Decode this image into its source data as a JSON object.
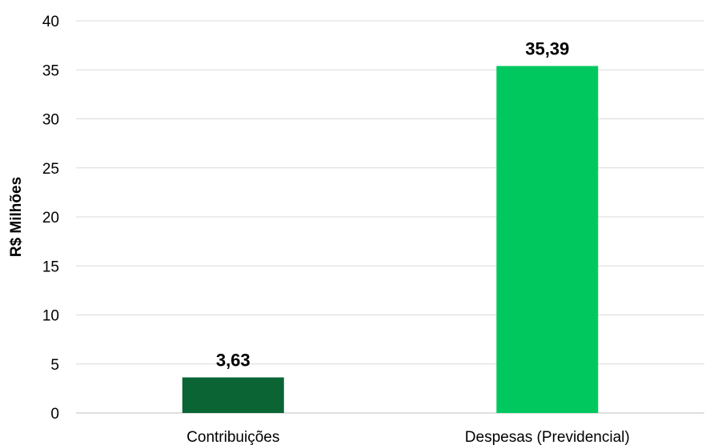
{
  "chart_data": {
    "type": "bar",
    "categories": [
      "Contribuições",
      "Despesas (Previdencial)"
    ],
    "values": [
      3.63,
      35.39
    ],
    "value_labels": [
      "3,63",
      "35,39"
    ],
    "bar_colors": [
      "#0a6434",
      "#00c85f"
    ],
    "title": "",
    "xlabel": "",
    "ylabel": "R$ Milhões",
    "ylim": [
      0,
      40
    ],
    "yticks": [
      0,
      5,
      10,
      15,
      20,
      25,
      30,
      35,
      40
    ],
    "grid": true,
    "legend": "none"
  }
}
